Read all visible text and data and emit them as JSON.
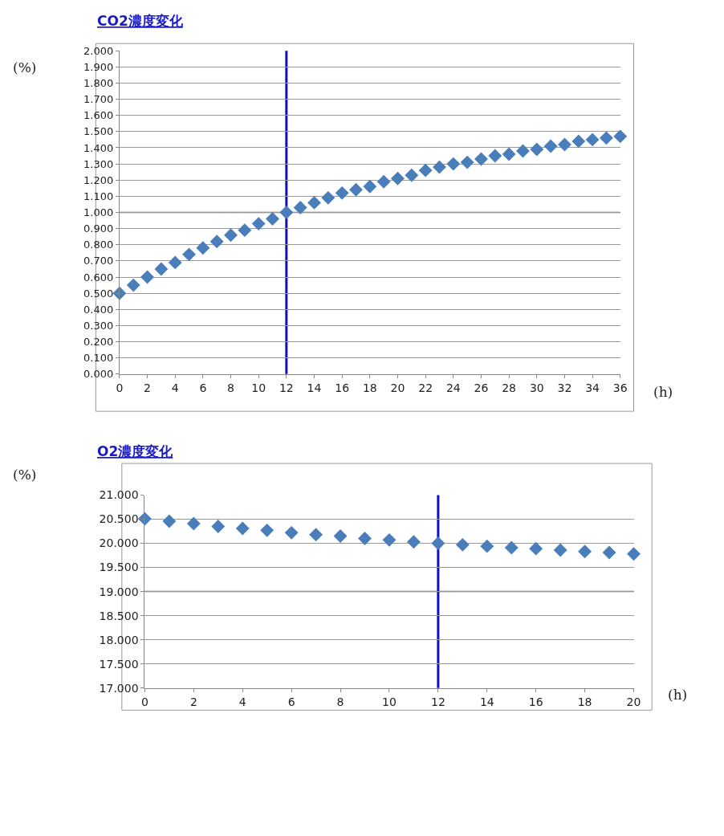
{
  "chart_data": [
    {
      "type": "scatter",
      "title": "CO2濃度変化",
      "ylabel": "(%)",
      "xlabel": "(h)",
      "marker": "diamond",
      "grid": "y",
      "x": [
        0,
        1,
        2,
        3,
        4,
        5,
        6,
        7,
        8,
        9,
        10,
        11,
        12,
        13,
        14,
        15,
        16,
        17,
        18,
        19,
        20,
        21,
        22,
        23,
        24,
        25,
        26,
        27,
        28,
        29,
        30,
        31,
        32,
        33,
        34,
        35,
        36
      ],
      "series": [
        {
          "color": "#4a7ebb",
          "values": [
            0.5,
            0.55,
            0.6,
            0.65,
            0.69,
            0.74,
            0.78,
            0.82,
            0.86,
            0.89,
            0.93,
            0.96,
            1.0,
            1.03,
            1.06,
            1.09,
            1.12,
            1.14,
            1.16,
            1.19,
            1.21,
            1.23,
            1.26,
            1.28,
            1.3,
            1.31,
            1.33,
            1.35,
            1.36,
            1.38,
            1.39,
            1.41,
            1.42,
            1.44,
            1.45,
            1.46,
            1.47
          ]
        }
      ],
      "xlim": [
        0,
        36
      ],
      "xticks": [
        0,
        2,
        4,
        6,
        8,
        10,
        12,
        14,
        16,
        18,
        20,
        22,
        24,
        26,
        28,
        30,
        32,
        34,
        36
      ],
      "ylim": [
        0,
        2.0
      ],
      "yticks": [
        {
          "value": 0,
          "label": "0.000"
        },
        {
          "value": 0.1,
          "label": "0.100"
        },
        {
          "value": 0.2,
          "label": "0.200"
        },
        {
          "value": 0.3,
          "label": "0.300"
        },
        {
          "value": 0.4,
          "label": "0.400"
        },
        {
          "value": 0.5,
          "label": "0.500"
        },
        {
          "value": 0.6,
          "label": "0.600"
        },
        {
          "value": 0.7,
          "label": "0.700"
        },
        {
          "value": 0.8,
          "label": "0.800"
        },
        {
          "value": 0.9,
          "label": "0.900"
        },
        {
          "value": 1.0,
          "label": "1.000"
        },
        {
          "value": 1.1,
          "label": "1.100"
        },
        {
          "value": 1.2,
          "label": "1.200"
        },
        {
          "value": 1.3,
          "label": "1.300"
        },
        {
          "value": 1.4,
          "label": "1.400"
        },
        {
          "value": 1.5,
          "label": "1.500"
        },
        {
          "value": 1.6,
          "label": "1.600"
        },
        {
          "value": 1.7,
          "label": "1.700"
        },
        {
          "value": 1.8,
          "label": "1.800"
        },
        {
          "value": 1.9,
          "label": "1.900"
        },
        {
          "value": 2.0,
          "label": "2.000"
        }
      ],
      "ref_lines": [
        {
          "axis": "y",
          "value": 1.0,
          "color": "#e0201c"
        },
        {
          "axis": "x",
          "value": 12,
          "color": "#1010c0"
        }
      ]
    },
    {
      "type": "scatter",
      "title": "O2濃度変化",
      "ylabel": "(%)",
      "xlabel": "(h)",
      "marker": "diamond",
      "grid": "y",
      "x": [
        0,
        1,
        2,
        3,
        4,
        5,
        6,
        7,
        8,
        9,
        10,
        11,
        12,
        13,
        14,
        15,
        16,
        17,
        18,
        19,
        20
      ],
      "series": [
        {
          "color": "#4a7ebb",
          "values": [
            20.51,
            20.46,
            20.41,
            20.35,
            20.31,
            20.27,
            20.22,
            20.18,
            20.15,
            20.1,
            20.07,
            20.03,
            20.0,
            19.97,
            19.94,
            19.91,
            19.89,
            19.86,
            19.83,
            19.81,
            19.78
          ]
        }
      ],
      "xlim": [
        0,
        20
      ],
      "xticks": [
        0,
        2,
        4,
        6,
        8,
        10,
        12,
        14,
        16,
        18,
        20
      ],
      "ylim": [
        17.0,
        21.0
      ],
      "yticks": [
        {
          "value": 17.0,
          "label": "17.000"
        },
        {
          "value": 17.5,
          "label": "17.500"
        },
        {
          "value": 18.0,
          "label": "18.000"
        },
        {
          "value": 18.5,
          "label": "18.500"
        },
        {
          "value": 19.0,
          "label": "19.000"
        },
        {
          "value": 19.5,
          "label": "19.500"
        },
        {
          "value": 20.0,
          "label": "20.000"
        },
        {
          "value": 20.5,
          "label": "20.500"
        },
        {
          "value": 21.0,
          "label": "21.000"
        }
      ],
      "ref_lines": [
        {
          "axis": "y",
          "value": 19.0,
          "color": "#e0201c"
        },
        {
          "axis": "x",
          "value": 12,
          "color": "#1010c0"
        }
      ]
    }
  ]
}
